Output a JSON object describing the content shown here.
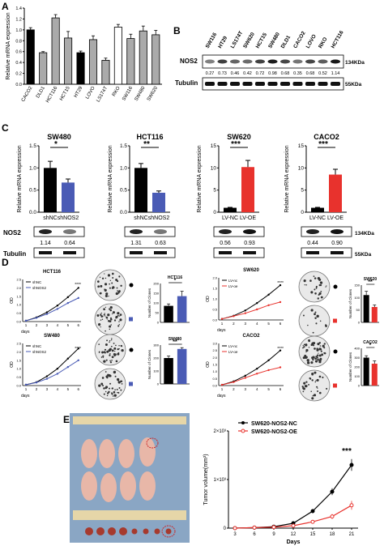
{
  "panels": {
    "A": {
      "letter": "A",
      "ylabel": "Relative mRNA expression",
      "categories": [
        "CACO2",
        "DLD1",
        "HCT116",
        "HCT15",
        "HT29",
        "LOVO",
        "LS174T",
        "RKO",
        "SW116",
        "SW480",
        "SW620"
      ],
      "values": [
        1.0,
        0.58,
        1.22,
        0.85,
        0.58,
        0.82,
        0.44,
        1.05,
        0.84,
        0.98,
        0.91
      ],
      "errors": [
        0.04,
        0.02,
        0.06,
        0.12,
        0.03,
        0.07,
        0.04,
        0.05,
        0.08,
        0.09,
        0.08
      ],
      "colors": [
        "#000000",
        "#aaaaaa",
        "#aaaaaa",
        "#aaaaaa",
        "#000000",
        "#aaaaaa",
        "#aaaaaa",
        "#ffffff",
        "#aaaaaa",
        "#aaaaaa",
        "#aaaaaa"
      ],
      "yticks": [
        "0.0",
        "0.2",
        "0.4",
        "0.6",
        "0.8",
        "1.0",
        "1.2",
        "1.4"
      ],
      "ylim": [
        0,
        1.4
      ]
    },
    "B": {
      "letter": "B",
      "lanes": [
        "SW116",
        "HT29",
        "LS174T",
        "SW620",
        "HCT15",
        "SW480",
        "DLD1",
        "CACO2",
        "LOVO",
        "RKO",
        "HCT116"
      ],
      "protein": "NOS2",
      "kda_top": "134KDa",
      "control": "Tubulin",
      "kda_bottom": "55KDa",
      "ratios": [
        "0.27",
        "0.73",
        "0.46",
        "0.42",
        "0.72",
        "0.98",
        "0.68",
        "0.35",
        "0.68",
        "0.52",
        "1.14"
      ]
    },
    "C": {
      "letter": "C",
      "ylabel": "Relative mRNA expression",
      "groups": [
        {
          "title": "SW480",
          "cats": [
            "shNC",
            "shNOS2"
          ],
          "values": [
            1.0,
            0.67
          ],
          "errors": [
            0.15,
            0.08
          ],
          "colors": [
            "#000000",
            "#4a5bb5"
          ],
          "ymax": 1.5,
          "yticks": [
            "0.0",
            "0.5",
            "1.0",
            "1.5"
          ],
          "sig": "*",
          "ratios": [
            "1.14",
            "0.64"
          ]
        },
        {
          "title": "HCT116",
          "cats": [
            "shNC",
            "shNOS2"
          ],
          "values": [
            1.0,
            0.44
          ],
          "errors": [
            0.1,
            0.04
          ],
          "colors": [
            "#000000",
            "#4a5bb5"
          ],
          "ymax": 1.5,
          "yticks": [
            "0.0",
            "0.5",
            "1.0",
            "1.5"
          ],
          "sig": "**",
          "ratios": [
            "1.31",
            "0.63"
          ]
        },
        {
          "title": "SW620",
          "cats": [
            "LV-NC",
            "LV-OE"
          ],
          "values": [
            1.0,
            10.2
          ],
          "errors": [
            0.1,
            1.5
          ],
          "colors": [
            "#000000",
            "#e8322d"
          ],
          "ymax": 15,
          "yticks": [
            "0",
            "5",
            "10",
            "15"
          ],
          "sig": "***",
          "ratios": [
            "0.56",
            "0.93"
          ]
        },
        {
          "title": "CACO2",
          "cats": [
            "LV-NC",
            "LV-OE"
          ],
          "values": [
            1.0,
            8.5
          ],
          "errors": [
            0.1,
            1.2
          ],
          "colors": [
            "#000000",
            "#e8322d"
          ],
          "ymax": 15,
          "yticks": [
            "0",
            "5",
            "10",
            "15"
          ],
          "sig": "***",
          "ratios": [
            "0.44",
            "0.90"
          ]
        }
      ],
      "blot_protein": "NOS2",
      "blot_control": "Tubulin",
      "kda_top": "134KDa",
      "kda_bottom": "55KDa"
    },
    "D": {
      "letter": "D",
      "curves": [
        {
          "title": "HCT116",
          "legend": [
            "shNC",
            "shNOS2"
          ],
          "colors": [
            "#000000",
            "#4a5bb5"
          ],
          "sig": "****",
          "x": [
            1,
            2,
            3,
            4,
            5,
            6
          ],
          "y1": [
            0.05,
            0.25,
            0.55,
            0.95,
            1.45,
            2.0
          ],
          "y2": [
            0.05,
            0.22,
            0.45,
            0.75,
            1.1,
            1.4
          ],
          "ytick_labels": [
            "0.0",
            "0.5",
            "1.0",
            "1.5",
            "2.0",
            "2.5"
          ],
          "ymax": 2.5,
          "xlabel": "days",
          "ylabel": "OD"
        },
        {
          "title": "SW480",
          "legend": [
            "shNC",
            "shNOS2"
          ],
          "colors": [
            "#000000",
            "#4a5bb5"
          ],
          "sig": "****",
          "x": [
            1,
            2,
            3,
            4,
            5,
            6
          ],
          "y1": [
            0.05,
            0.2,
            0.55,
            1.0,
            1.6,
            2.2
          ],
          "y2": [
            0.05,
            0.18,
            0.4,
            0.7,
            1.1,
            1.5
          ],
          "ytick_labels": [
            "0.0",
            "0.5",
            "1.0",
            "1.5",
            "2.0",
            "2.5"
          ],
          "ymax": 2.5,
          "xlabel": "days",
          "ylabel": "OD"
        },
        {
          "title": "SW620",
          "legend": [
            "LV-nc",
            "LV-oe"
          ],
          "colors": [
            "#000000",
            "#e8322d"
          ],
          "sig": "****",
          "x": [
            1,
            2,
            3,
            4,
            5,
            6
          ],
          "y1": [
            0.05,
            0.2,
            0.45,
            0.8,
            1.2,
            1.65
          ],
          "y2": [
            0.05,
            0.18,
            0.32,
            0.5,
            0.7,
            0.85
          ],
          "ytick_labels": [
            "0.0",
            "0.5",
            "1.0",
            "1.5",
            "2.0"
          ],
          "ymax": 2.0,
          "xlabel": "days",
          "ylabel": "OD"
        },
        {
          "title": "CACO2",
          "legend": [
            "LV-nc",
            "LV-oe"
          ],
          "colors": [
            "#000000",
            "#e8322d"
          ],
          "sig": "****",
          "x": [
            1,
            2,
            3,
            4,
            5,
            6
          ],
          "y1": [
            0.05,
            0.3,
            0.7,
            1.2,
            1.8,
            2.5
          ],
          "y2": [
            0.05,
            0.25,
            0.55,
            0.85,
            1.1,
            1.3
          ],
          "ytick_labels": [
            "0.0",
            "0.5",
            "1.0",
            "1.5",
            "2.0",
            "2.5",
            "3.0"
          ],
          "ymax": 3.0,
          "xlabel": "days",
          "ylabel": "OD"
        }
      ],
      "clones": [
        {
          "title": "HCT116",
          "values": [
            85,
            135
          ],
          "errors": [
            10,
            25
          ],
          "colors": [
            "#000000",
            "#4a5bb5"
          ],
          "ymax": 200,
          "yticks": [
            "0",
            "50",
            "100",
            "150",
            "200"
          ],
          "sig": "*",
          "ylabel": "Number of Clones"
        },
        {
          "title": "SW480",
          "values": [
            200,
            270
          ],
          "errors": [
            15,
            10
          ],
          "colors": [
            "#000000",
            "#4a5bb5"
          ],
          "ymax": 300,
          "yticks": [
            "0",
            "100",
            "200",
            "300"
          ],
          "sig": "**",
          "ylabel": "Number of Clones"
        },
        {
          "title": "SW620",
          "values": [
            110,
            62
          ],
          "errors": [
            15,
            8
          ],
          "colors": [
            "#000000",
            "#e8322d"
          ],
          "ymax": 150,
          "yticks": [
            "0",
            "50",
            "100",
            "150"
          ],
          "sig": "**",
          "ylabel": "Number of Clones"
        },
        {
          "title": "CACO2",
          "values": [
            300,
            235
          ],
          "errors": [
            20,
            30
          ],
          "colors": [
            "#000000",
            "#e8322d"
          ],
          "ymax": 400,
          "yticks": [
            "0",
            "100",
            "200",
            "300",
            "400"
          ],
          "sig": "*",
          "ylabel": "Number of Clones"
        }
      ]
    },
    "E": {
      "letter": "E",
      "legend": [
        "SW620-NOS2-NC",
        "SW620-NOS2-OE"
      ],
      "colors": [
        "#000000",
        "#e8322d"
      ],
      "x": [
        3,
        6,
        9,
        12,
        15,
        18,
        21
      ],
      "nc": [
        0.0,
        0.01,
        0.03,
        0.1,
        0.35,
        0.75,
        1.3
      ],
      "oe": [
        0.0,
        0.01,
        0.02,
        0.05,
        0.13,
        0.24,
        0.47
      ],
      "nc_err": [
        0,
        0,
        0.01,
        0.02,
        0.04,
        0.07,
        0.12
      ],
      "oe_err": [
        0,
        0,
        0.01,
        0.01,
        0.03,
        0.05,
        0.09
      ],
      "xlabel": "Days",
      "ylabel": "Tumor volume(mm³)",
      "yticks": [
        "0",
        "1×10³",
        "2×10³"
      ],
      "ymax": 2.0,
      "sig": "***"
    }
  }
}
